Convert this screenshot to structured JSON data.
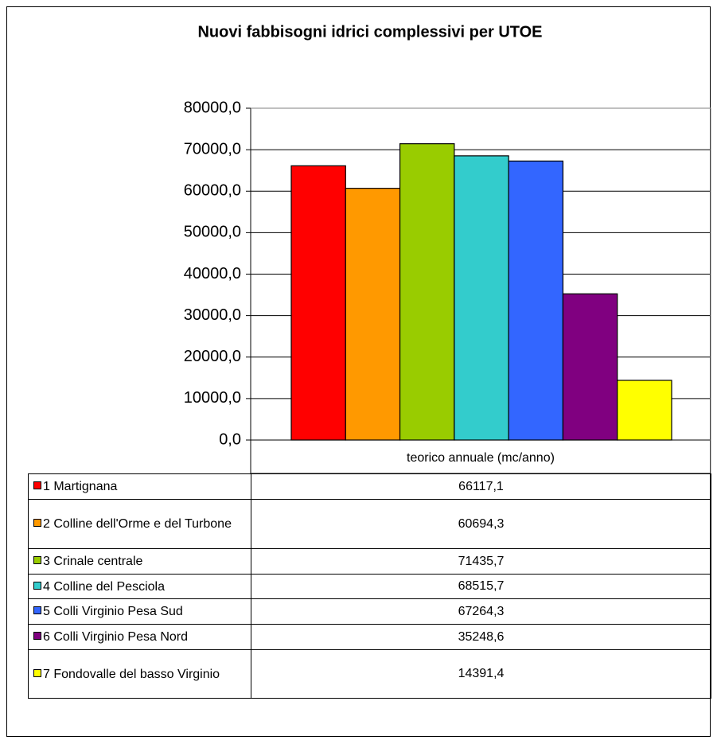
{
  "chart_data": {
    "type": "bar",
    "title": "Nuovi fabbisogni idrici complessivi per UTOE",
    "categories": [
      "teorico annuale (mc/anno)"
    ],
    "series": [
      {
        "name": "1 Martignana",
        "color": "#ff0000",
        "values": [
          66117.1
        ],
        "value_labels": [
          "66117,1"
        ]
      },
      {
        "name": "2 Colline dell'Orme e del Turbone",
        "color": "#ff9900",
        "values": [
          60694.3
        ],
        "value_labels": [
          "60694,3"
        ]
      },
      {
        "name": "3 Crinale centrale",
        "color": "#99cc00",
        "values": [
          71435.7
        ],
        "value_labels": [
          "71435,7"
        ]
      },
      {
        "name": "4 Colline del Pesciola",
        "color": "#33cccc",
        "values": [
          68515.7
        ],
        "value_labels": [
          "68515,7"
        ]
      },
      {
        "name": "5 Colli Virginio Pesa Sud",
        "color": "#3366ff",
        "values": [
          67264.3
        ],
        "value_labels": [
          "67264,3"
        ]
      },
      {
        "name": "6 Colli Virginio Pesa Nord",
        "color": "#800080",
        "values": [
          35248.6
        ],
        "value_labels": [
          "35248,6"
        ]
      },
      {
        "name": "7 Fondovalle del basso Virginio",
        "color": "#ffff00",
        "values": [
          14391.4
        ],
        "value_labels": [
          "14391,4"
        ]
      }
    ],
    "ylim": [
      0,
      80000
    ],
    "yticks": [
      {
        "value": 0,
        "label": "0,0"
      },
      {
        "value": 10000,
        "label": "10000,0"
      },
      {
        "value": 20000,
        "label": "20000,0"
      },
      {
        "value": 30000,
        "label": "30000,0"
      },
      {
        "value": 40000,
        "label": "40000,0"
      },
      {
        "value": 50000,
        "label": "50000,0"
      },
      {
        "value": 60000,
        "label": "60000,0"
      },
      {
        "value": 70000,
        "label": "70000,0"
      },
      {
        "value": 80000,
        "label": "80000,0"
      }
    ],
    "grid": true
  }
}
